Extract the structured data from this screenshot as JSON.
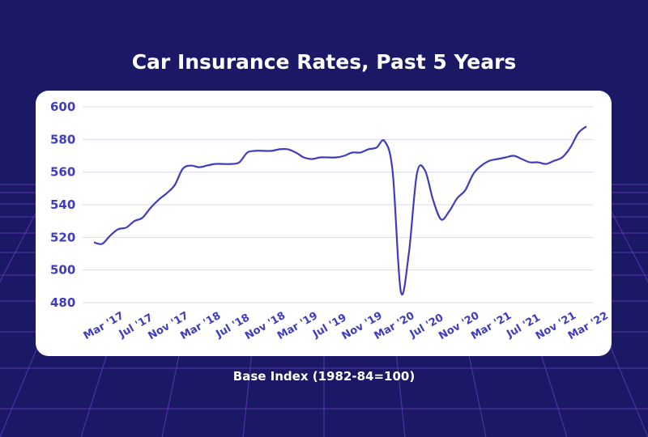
{
  "title": "Car Insurance Rates, Past 5 Years",
  "chart_data": {
    "type": "line",
    "title": "Car Insurance Rates, Past 5 Years",
    "xlabel": "Base Index (1982-84=100)",
    "ylabel": "",
    "ylim": [
      480,
      600
    ],
    "yticks": [
      480,
      500,
      520,
      540,
      560,
      580,
      600
    ],
    "grid": true,
    "x_tick_labels": [
      "Mar '17",
      "Jul '17",
      "Nov '17",
      "Mar '18",
      "Jul '18",
      "Nov '18",
      "Mar '19",
      "Jul '19",
      "Nov '19",
      "Mar '20",
      "Jul '20",
      "Nov '20",
      "Mar '21",
      "Jul '21",
      "Nov '21",
      "Mar '22"
    ],
    "line_color": "#3f3cbf",
    "series": [
      {
        "x": [
          "Mar '17",
          "Apr '17",
          "May '17",
          "Jun '17",
          "Jul '17",
          "Aug '17",
          "Sep '17",
          "Oct '17",
          "Nov '17",
          "Dec '17",
          "Jan '18",
          "Feb '18",
          "Mar '18",
          "Apr '18",
          "May '18",
          "Jun '18",
          "Jul '18",
          "Aug '18",
          "Sep '18",
          "Oct '18",
          "Nov '18",
          "Dec '18",
          "Jan '19",
          "Feb '19",
          "Mar '19",
          "Apr '19",
          "May '19",
          "Jun '19",
          "Jul '19",
          "Aug '19",
          "Sep '19",
          "Oct '19",
          "Nov '19",
          "Dec '19",
          "Jan '20",
          "Feb '20",
          "Mar '20",
          "Apr '20",
          "May '20",
          "Jun '20",
          "Jul '20",
          "Aug '20",
          "Sep '20",
          "Oct '20",
          "Nov '20",
          "Dec '20",
          "Jan '21",
          "Feb '21",
          "Mar '21",
          "Apr '21",
          "May '21",
          "Jun '21",
          "Jul '21",
          "Aug '21",
          "Sep '21",
          "Oct '21",
          "Nov '21",
          "Dec '21",
          "Jan '22",
          "Feb '22",
          "Mar '22",
          "Apr '22"
        ],
        "values": [
          517,
          516,
          521,
          525,
          526,
          530,
          532,
          538,
          543,
          547,
          552,
          562,
          564,
          563,
          564,
          565,
          565,
          565,
          566,
          572,
          573,
          573,
          573,
          574,
          574,
          572,
          569,
          568,
          569,
          569,
          569,
          570,
          572,
          572,
          574,
          575,
          579,
          560,
          487,
          510,
          559,
          561,
          543,
          531,
          536,
          544,
          549,
          559,
          564,
          567,
          568,
          569,
          570,
          568,
          566,
          566,
          565,
          567,
          569,
          575,
          584,
          588
        ]
      }
    ]
  }
}
